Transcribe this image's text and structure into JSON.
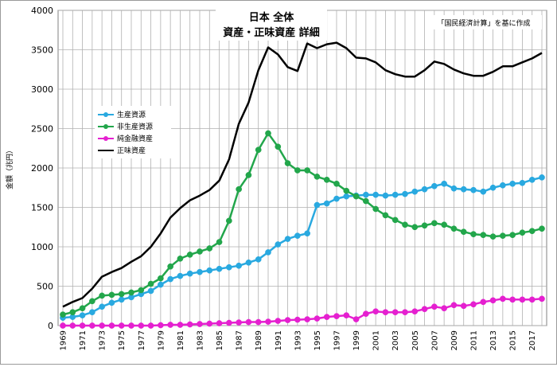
{
  "chart_data": {
    "type": "line",
    "title_line1": "日本 全体",
    "title_line2": "資産・正味資産 詳細",
    "note": "「国民経済計算」を基に作成",
    "ylabel": "金額（兆円）",
    "xlabel": "",
    "ylim": [
      0,
      4000
    ],
    "yticks": [
      0,
      500,
      1000,
      1500,
      2000,
      2500,
      3000,
      3500,
      4000
    ],
    "x": [
      1969,
      1970,
      1971,
      1972,
      1973,
      1974,
      1975,
      1976,
      1977,
      1978,
      1979,
      1980,
      1981,
      1982,
      1983,
      1984,
      1985,
      1986,
      1987,
      1988,
      1989,
      1990,
      1991,
      1992,
      1993,
      1994,
      1995,
      1996,
      1997,
      1998,
      1999,
      2000,
      2001,
      2002,
      2003,
      2004,
      2005,
      2006,
      2007,
      2008,
      2009,
      2010,
      2011,
      2012,
      2013,
      2014,
      2015,
      2016,
      2017,
      2018
    ],
    "xtick_labels": [
      "1969",
      "1971",
      "1973",
      "1975",
      "1977",
      "1979",
      "1981",
      "1983",
      "1985",
      "1987",
      "1989",
      "1991",
      "1993",
      "1995",
      "1997",
      "1999",
      "2001",
      "2003",
      "2005",
      "2007",
      "2009",
      "2011",
      "2013",
      "2015",
      "2017"
    ],
    "grid": true,
    "legend_position": "left",
    "series": [
      {
        "name": "生産資源",
        "color": "#29a9e0",
        "marker": true,
        "values": [
          100,
          110,
          130,
          170,
          240,
          290,
          330,
          360,
          400,
          440,
          520,
          590,
          630,
          660,
          680,
          700,
          720,
          740,
          760,
          800,
          840,
          930,
          1030,
          1100,
          1140,
          1170,
          1530,
          1550,
          1610,
          1640,
          1650,
          1660,
          1660,
          1650,
          1660,
          1670,
          1700,
          1730,
          1770,
          1800,
          1740,
          1730,
          1720,
          1700,
          1750,
          1780,
          1800,
          1810,
          1850,
          1880
        ]
      },
      {
        "name": "非生産資源",
        "color": "#22a64b",
        "marker": true,
        "values": [
          140,
          170,
          220,
          310,
          380,
          390,
          400,
          420,
          450,
          530,
          600,
          750,
          850,
          900,
          940,
          980,
          1060,
          1330,
          1730,
          1910,
          2230,
          2440,
          2270,
          2060,
          1970,
          1970,
          1890,
          1850,
          1800,
          1710,
          1640,
          1580,
          1480,
          1400,
          1340,
          1280,
          1250,
          1270,
          1300,
          1280,
          1230,
          1190,
          1160,
          1150,
          1130,
          1140,
          1150,
          1180,
          1200,
          1230
        ]
      },
      {
        "name": "純金融資産",
        "color": "#e520d0",
        "marker": true,
        "values": [
          0,
          0,
          0,
          0,
          0,
          0,
          0,
          0,
          0,
          0,
          5,
          10,
          10,
          15,
          20,
          25,
          30,
          35,
          40,
          45,
          45,
          50,
          60,
          70,
          75,
          80,
          90,
          110,
          120,
          130,
          80,
          150,
          180,
          170,
          170,
          170,
          180,
          210,
          240,
          220,
          260,
          250,
          270,
          300,
          320,
          340,
          330,
          330,
          330,
          340
        ]
      },
      {
        "name": "正味資産",
        "color": "#000000",
        "marker": false,
        "values": [
          240,
          300,
          350,
          470,
          620,
          680,
          730,
          810,
          880,
          1000,
          1170,
          1370,
          1490,
          1590,
          1650,
          1720,
          1840,
          2110,
          2560,
          2830,
          3240,
          3530,
          3440,
          3280,
          3230,
          3580,
          3520,
          3570,
          3590,
          3520,
          3400,
          3390,
          3340,
          3240,
          3190,
          3160,
          3160,
          3240,
          3350,
          3320,
          3250,
          3200,
          3170,
          3170,
          3220,
          3290,
          3290,
          3340,
          3390,
          3460
        ]
      }
    ]
  }
}
